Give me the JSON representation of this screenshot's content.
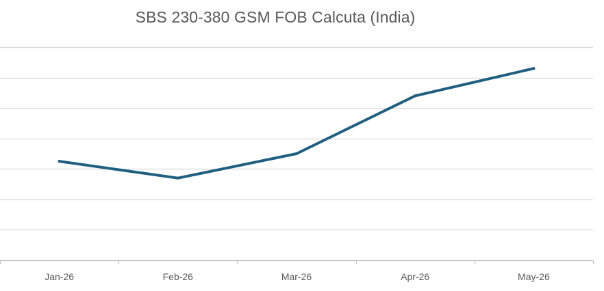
{
  "chart_data": {
    "type": "line",
    "title": "SBS 230-380 GSM FOB Calcuta (India)",
    "xlabel": "",
    "ylabel": "",
    "categories": [
      "Jan-26",
      "Feb-26",
      "Mar-26",
      "Apr-26",
      "May-26"
    ],
    "series": [
      {
        "values": [
          3.25,
          2.7,
          3.5,
          5.4,
          6.3
        ]
      }
    ],
    "ylim": [
      0,
      7
    ],
    "y_ticks": [
      0,
      1,
      2,
      3,
      4,
      5,
      6,
      7
    ],
    "y_tick_labels_shown": false,
    "grid": true,
    "legend": "none",
    "colors": {
      "line": "#1f5f7f",
      "grid": "#d9d9d9",
      "axis": "#bfbfbf",
      "text": "#595959"
    }
  }
}
